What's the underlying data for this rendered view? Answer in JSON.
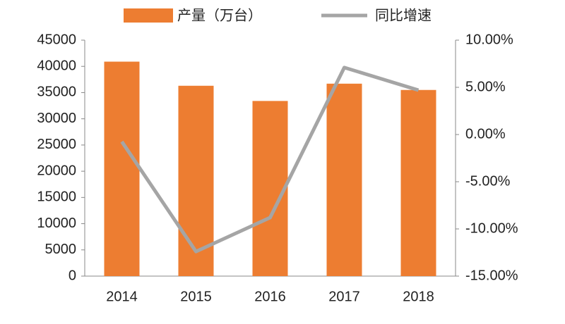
{
  "chart_data": {
    "type": "bar",
    "categories": [
      "2014",
      "2015",
      "2016",
      "2017",
      "2018"
    ],
    "series": [
      {
        "name": "产量（万台）",
        "type": "bar",
        "color": "#ed7d31",
        "values": [
          40900,
          36300,
          33400,
          36700,
          35500
        ]
      },
      {
        "name": "同比增速",
        "type": "line",
        "axis": "y2",
        "color": "#a5a5a5",
        "values": [
          -0.75,
          -12.4,
          -8.8,
          7.1,
          4.7
        ]
      }
    ],
    "ylim": [
      0,
      45000
    ],
    "yticks": [
      0,
      5000,
      10000,
      15000,
      20000,
      25000,
      30000,
      35000,
      40000,
      45000
    ],
    "y2lim": [
      -15,
      10
    ],
    "y2ticks": [
      {
        "value": -15,
        "label": "-15.00%"
      },
      {
        "value": -10,
        "label": "-10.00%"
      },
      {
        "value": -5,
        "label": "-5.00%"
      },
      {
        "value": 0,
        "label": "0.00%"
      },
      {
        "value": 5,
        "label": "5.00%"
      },
      {
        "value": 10,
        "label": "10.00%"
      }
    ],
    "grid": false,
    "legend": "top"
  }
}
